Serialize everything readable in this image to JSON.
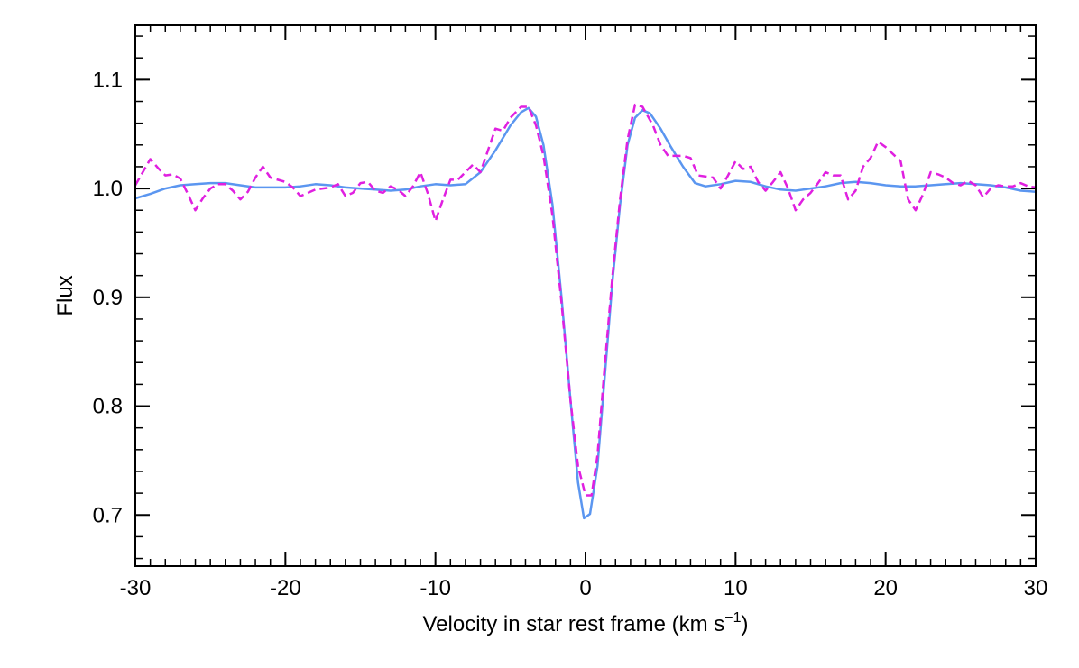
{
  "chart_data": {
    "type": "line",
    "xlabel": "Velocity in star rest frame (km s",
    "xlabel_sup": "−1",
    "xlabel_end": ")",
    "ylabel": "Flux",
    "xlim": [
      -30,
      30
    ],
    "ylim": [
      0.653,
      1.15
    ],
    "x_ticks": [
      -30,
      -20,
      -10,
      0,
      10,
      20,
      30
    ],
    "x_tick_labels": [
      "-30",
      "-20",
      "-10",
      "0",
      "10",
      "20",
      "30"
    ],
    "y_ticks": [
      0.7,
      0.8,
      0.9,
      1.0,
      1.1
    ],
    "y_tick_labels": [
      "0.7",
      "0.8",
      "0.9",
      "1.0",
      "1.1"
    ],
    "x_minor_step": 1,
    "y_minor_step": 0.02,
    "grid": false,
    "legend": "none",
    "series": [
      {
        "color": "#5b96f0",
        "style": "solid",
        "points": [
          [
            -30,
            0.991
          ],
          [
            -29,
            0.995
          ],
          [
            -28,
            1.0
          ],
          [
            -27,
            1.003
          ],
          [
            -26,
            1.004
          ],
          [
            -25,
            1.005
          ],
          [
            -24,
            1.005
          ],
          [
            -23,
            1.003
          ],
          [
            -22,
            1.001
          ],
          [
            -21,
            1.001
          ],
          [
            -20,
            1.001
          ],
          [
            -19,
            1.002
          ],
          [
            -18,
            1.004
          ],
          [
            -17,
            1.003
          ],
          [
            -16,
            1.001
          ],
          [
            -15,
            1.0
          ],
          [
            -14,
            0.999
          ],
          [
            -13,
            0.998
          ],
          [
            -12,
            0.999
          ],
          [
            -11,
            1.002
          ],
          [
            -10,
            1.004
          ],
          [
            -9,
            1.003
          ],
          [
            -8,
            1.004
          ],
          [
            -7,
            1.015
          ],
          [
            -6,
            1.035
          ],
          [
            -5,
            1.058
          ],
          [
            -4.3,
            1.07
          ],
          [
            -3.8,
            1.074
          ],
          [
            -3.3,
            1.066
          ],
          [
            -2.8,
            1.04
          ],
          [
            -2.2,
            0.985
          ],
          [
            -1.6,
            0.9
          ],
          [
            -1.0,
            0.805
          ],
          [
            -0.5,
            0.73
          ],
          [
            -0.1,
            0.697
          ],
          [
            0.3,
            0.701
          ],
          [
            0.8,
            0.745
          ],
          [
            1.3,
            0.83
          ],
          [
            1.8,
            0.915
          ],
          [
            2.3,
            0.985
          ],
          [
            2.8,
            1.04
          ],
          [
            3.3,
            1.065
          ],
          [
            3.8,
            1.072
          ],
          [
            4.3,
            1.069
          ],
          [
            5.0,
            1.055
          ],
          [
            5.7,
            1.038
          ],
          [
            6.5,
            1.02
          ],
          [
            7.3,
            1.005
          ],
          [
            8,
            1.002
          ],
          [
            9,
            1.004
          ],
          [
            10,
            1.007
          ],
          [
            11,
            1.006
          ],
          [
            12,
            1.002
          ],
          [
            13,
            0.999
          ],
          [
            14,
            0.998
          ],
          [
            15,
            1.0
          ],
          [
            16,
            1.002
          ],
          [
            17,
            1.005
          ],
          [
            18,
            1.006
          ],
          [
            19,
            1.005
          ],
          [
            20,
            1.003
          ],
          [
            21,
            1.002
          ],
          [
            22,
            1.002
          ],
          [
            23,
            1.003
          ],
          [
            24,
            1.004
          ],
          [
            25,
            1.005
          ],
          [
            26,
            1.004
          ],
          [
            27,
            1.003
          ],
          [
            28,
            1.001
          ],
          [
            29,
            0.998
          ],
          [
            30,
            0.997
          ]
        ]
      },
      {
        "color": "#e020e0",
        "style": "dashed",
        "points": [
          [
            -30,
            1.003
          ],
          [
            -29.5,
            1.015
          ],
          [
            -29,
            1.027
          ],
          [
            -28.5,
            1.019
          ],
          [
            -28,
            1.012
          ],
          [
            -27.5,
            1.013
          ],
          [
            -27,
            1.009
          ],
          [
            -26.5,
            0.995
          ],
          [
            -26,
            0.98
          ],
          [
            -25.5,
            0.991
          ],
          [
            -25,
            1.0
          ],
          [
            -24.5,
            1.004
          ],
          [
            -24,
            1.004
          ],
          [
            -23.5,
            0.998
          ],
          [
            -23,
            0.99
          ],
          [
            -22.5,
            0.997
          ],
          [
            -22,
            1.01
          ],
          [
            -21.5,
            1.02
          ],
          [
            -21,
            1.01
          ],
          [
            -20,
            1.006
          ],
          [
            -19.5,
            1.001
          ],
          [
            -19,
            0.993
          ],
          [
            -18.5,
            0.996
          ],
          [
            -18,
            0.999
          ],
          [
            -17,
            1.001
          ],
          [
            -16.5,
            1.004
          ],
          [
            -16,
            0.993
          ],
          [
            -15.5,
            0.996
          ],
          [
            -15,
            1.005
          ],
          [
            -14.5,
            1.006
          ],
          [
            -14,
            0.998
          ],
          [
            -13.5,
            0.996
          ],
          [
            -13,
            1.002
          ],
          [
            -12.5,
            0.999
          ],
          [
            -12,
            0.993
          ],
          [
            -11.5,
            1.002
          ],
          [
            -11,
            1.015
          ],
          [
            -10.5,
            0.995
          ],
          [
            -10,
            0.97
          ],
          [
            -9.5,
            0.99
          ],
          [
            -9,
            1.008
          ],
          [
            -8.5,
            1.008
          ],
          [
            -8,
            1.015
          ],
          [
            -7.5,
            1.022
          ],
          [
            -7,
            1.015
          ],
          [
            -6.5,
            1.035
          ],
          [
            -6,
            1.055
          ],
          [
            -5.5,
            1.053
          ],
          [
            -5,
            1.065
          ],
          [
            -4.3,
            1.075
          ],
          [
            -3.8,
            1.075
          ],
          [
            -3.3,
            1.058
          ],
          [
            -2.8,
            1.03
          ],
          [
            -2.2,
            0.975
          ],
          [
            -1.6,
            0.895
          ],
          [
            -1.0,
            0.805
          ],
          [
            -0.5,
            0.745
          ],
          [
            0,
            0.718
          ],
          [
            0.4,
            0.718
          ],
          [
            0.8,
            0.755
          ],
          [
            1.3,
            0.84
          ],
          [
            1.8,
            0.92
          ],
          [
            2.3,
            0.99
          ],
          [
            2.8,
            1.045
          ],
          [
            3.3,
            1.077
          ],
          [
            3.8,
            1.075
          ],
          [
            4.5,
            1.058
          ],
          [
            5.0,
            1.04
          ],
          [
            5.5,
            1.03
          ],
          [
            6.0,
            1.03
          ],
          [
            6.5,
            1.03
          ],
          [
            7.0,
            1.028
          ],
          [
            7.5,
            1.012
          ],
          [
            8.5,
            1.01
          ],
          [
            9.0,
            1.0
          ],
          [
            9.5,
            1.012
          ],
          [
            10,
            1.025
          ],
          [
            10.5,
            1.018
          ],
          [
            11,
            1.02
          ],
          [
            11.5,
            1.006
          ],
          [
            12,
            0.998
          ],
          [
            12.5,
            1.006
          ],
          [
            13,
            1.015
          ],
          [
            13.5,
            1.0
          ],
          [
            14,
            0.98
          ],
          [
            14.5,
            0.99
          ],
          [
            15,
            0.996
          ],
          [
            15.5,
            1.005
          ],
          [
            16,
            1.015
          ],
          [
            16.5,
            1.012
          ],
          [
            17,
            1.012
          ],
          [
            17.5,
            0.99
          ],
          [
            18,
            0.998
          ],
          [
            18.5,
            1.02
          ],
          [
            19,
            1.028
          ],
          [
            19.5,
            1.043
          ],
          [
            20,
            1.038
          ],
          [
            21,
            1.025
          ],
          [
            21.5,
            0.99
          ],
          [
            22,
            0.98
          ],
          [
            22.5,
            0.995
          ],
          [
            23,
            1.015
          ],
          [
            23.5,
            1.013
          ],
          [
            24,
            1.01
          ],
          [
            24.5,
            1.005
          ],
          [
            25,
            1.003
          ],
          [
            25.5,
            1.007
          ],
          [
            26,
            1.003
          ],
          [
            26.5,
            0.992
          ],
          [
            27,
            1.0
          ],
          [
            27.5,
            1.003
          ],
          [
            28,
            1.002
          ],
          [
            28.5,
            1.002
          ],
          [
            29,
            1.005
          ],
          [
            29.5,
            1.002
          ],
          [
            30,
            1.001
          ]
        ]
      }
    ]
  }
}
